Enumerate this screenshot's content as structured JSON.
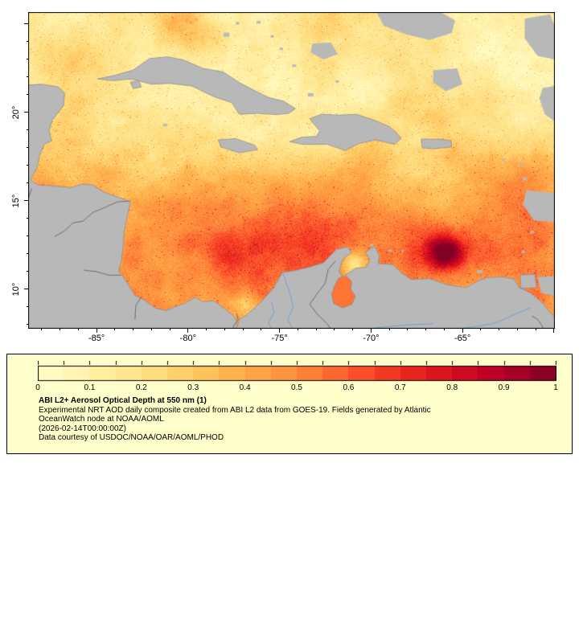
{
  "window": {
    "background": "#ffffff"
  },
  "map": {
    "frame_color": "#000000",
    "land_color": "#b8b8b8",
    "coast_color": "#8f8f8f",
    "border_color": "#6f6f6f",
    "river_color": "#7aa0cc",
    "lon_range": [
      -88.74,
      -59.95
    ],
    "lat_range": [
      7.77,
      25.68
    ],
    "lon_ticks": [
      {
        "value": -85,
        "label": "-85°"
      },
      {
        "value": -80,
        "label": "-80°"
      },
      {
        "value": -75,
        "label": "-75°"
      },
      {
        "value": -70,
        "label": "-70°"
      },
      {
        "value": -65,
        "label": "-65°"
      }
    ],
    "lat_ticks": [
      {
        "value": 20,
        "label": "20°"
      },
      {
        "value": 15,
        "label": "15°"
      },
      {
        "value": 10,
        "label": "10°"
      }
    ],
    "hotspots": [
      [
        -65.9,
        12.1,
        1.0,
        0.55
      ],
      [
        -66.5,
        12.8,
        2.0,
        0.2
      ],
      [
        -74.5,
        12.8,
        3.5,
        0.18
      ],
      [
        -77.9,
        11.6,
        2.0,
        0.16
      ],
      [
        -80.0,
        14.5,
        3.0,
        0.15
      ],
      [
        -71.0,
        14.0,
        3.0,
        0.12
      ],
      [
        -62.5,
        16.5,
        3.5,
        0.1
      ],
      [
        -80.6,
        25.2,
        1.5,
        0.32
      ],
      [
        -78.9,
        24.1,
        1.1,
        0.16
      ],
      [
        -86.4,
        22.8,
        1.3,
        0.1
      ],
      [
        -70.9,
        11.4,
        0.8,
        -0.3
      ],
      [
        -76.9,
        9.3,
        0.7,
        -0.2
      ]
    ],
    "land_polygons": [
      [
        [
          -88.74,
          21.55
        ],
        [
          -88.0,
          21.6
        ],
        [
          -87.1,
          21.45
        ],
        [
          -86.75,
          21.1
        ],
        [
          -86.8,
          20.4
        ],
        [
          -87.4,
          19.6
        ],
        [
          -87.6,
          19.0
        ],
        [
          -87.45,
          18.4
        ],
        [
          -87.85,
          18.2
        ],
        [
          -88.1,
          17.6
        ],
        [
          -88.25,
          16.9
        ],
        [
          -88.6,
          16.2
        ],
        [
          -88.2,
          15.9
        ],
        [
          -87.4,
          15.85
        ],
        [
          -86.4,
          15.75
        ],
        [
          -85.8,
          15.95
        ],
        [
          -85.2,
          15.9
        ],
        [
          -84.6,
          15.5
        ],
        [
          -83.8,
          15.2
        ],
        [
          -83.15,
          14.95
        ],
        [
          -83.35,
          14.0
        ],
        [
          -83.5,
          13.2
        ],
        [
          -83.55,
          12.4
        ],
        [
          -83.65,
          11.6
        ],
        [
          -83.8,
          11.0
        ],
        [
          -83.6,
          10.8
        ],
        [
          -82.9,
          9.65
        ],
        [
          -82.4,
          9.4
        ],
        [
          -81.8,
          8.95
        ],
        [
          -81.2,
          8.8
        ],
        [
          -80.6,
          9.05
        ],
        [
          -80.1,
          9.25
        ],
        [
          -79.6,
          9.55
        ],
        [
          -79.2,
          9.3
        ],
        [
          -78.6,
          9.35
        ],
        [
          -78.0,
          8.9
        ],
        [
          -77.5,
          8.5
        ],
        [
          -77.35,
          8.2
        ],
        [
          -77.35,
          7.77
        ],
        [
          -88.74,
          7.77
        ]
      ],
      [
        [
          -84.95,
          21.9
        ],
        [
          -84.0,
          22.1
        ],
        [
          -83.0,
          22.4
        ],
        [
          -82.1,
          23.05
        ],
        [
          -81.1,
          23.15
        ],
        [
          -80.2,
          22.95
        ],
        [
          -79.2,
          22.5
        ],
        [
          -78.1,
          22.3
        ],
        [
          -77.2,
          21.7
        ],
        [
          -76.3,
          21.2
        ],
        [
          -75.6,
          20.85
        ],
        [
          -74.8,
          20.65
        ],
        [
          -74.13,
          20.22
        ],
        [
          -74.5,
          19.95
        ],
        [
          -75.2,
          19.88
        ],
        [
          -76.2,
          19.95
        ],
        [
          -77.2,
          19.9
        ],
        [
          -77.6,
          20.55
        ],
        [
          -78.6,
          20.9
        ],
        [
          -79.8,
          21.5
        ],
        [
          -81.0,
          21.65
        ],
        [
          -82.0,
          21.6
        ],
        [
          -83.1,
          21.9
        ],
        [
          -84.1,
          21.8
        ]
      ],
      [
        [
          -83.15,
          21.7
        ],
        [
          -82.7,
          21.8
        ],
        [
          -82.55,
          21.45
        ],
        [
          -83.0,
          21.35
        ]
      ],
      [
        [
          -74.45,
          18.35
        ],
        [
          -73.8,
          18.6
        ],
        [
          -73.0,
          18.65
        ],
        [
          -72.8,
          18.95
        ],
        [
          -73.35,
          19.65
        ],
        [
          -72.7,
          19.9
        ],
        [
          -71.75,
          19.85
        ],
        [
          -70.8,
          19.9
        ],
        [
          -69.9,
          19.6
        ],
        [
          -69.0,
          19.2
        ],
        [
          -68.7,
          18.95
        ],
        [
          -68.35,
          18.55
        ],
        [
          -68.7,
          18.2
        ],
        [
          -69.75,
          18.45
        ],
        [
          -70.65,
          18.25
        ],
        [
          -71.4,
          17.85
        ],
        [
          -72.4,
          18.2
        ],
        [
          -73.75,
          18.2
        ]
      ],
      [
        [
          -78.35,
          18.45
        ],
        [
          -77.4,
          18.52
        ],
        [
          -76.35,
          18.15
        ],
        [
          -76.2,
          17.9
        ],
        [
          -77.2,
          17.72
        ],
        [
          -78.2,
          18.05
        ]
      ],
      [
        [
          -67.25,
          18.5
        ],
        [
          -66.1,
          18.48
        ],
        [
          -65.62,
          18.4
        ],
        [
          -65.6,
          18.05
        ],
        [
          -66.6,
          17.95
        ],
        [
          -67.2,
          18.0
        ]
      ],
      [
        [
          -77.35,
          7.77
        ],
        [
          -77.2,
          8.3
        ],
        [
          -76.8,
          8.55
        ],
        [
          -76.0,
          9.3
        ],
        [
          -75.3,
          10.1
        ],
        [
          -74.85,
          10.95
        ],
        [
          -74.2,
          11.05
        ],
        [
          -73.4,
          11.25
        ],
        [
          -72.6,
          11.5
        ],
        [
          -71.9,
          12.25
        ],
        [
          -71.3,
          12.4
        ],
        [
          -71.05,
          12.1
        ],
        [
          -71.55,
          11.7
        ],
        [
          -71.75,
          11.0
        ],
        [
          -71.55,
          10.7
        ],
        [
          -71.2,
          10.95
        ],
        [
          -70.8,
          11.2
        ],
        [
          -70.25,
          11.25
        ],
        [
          -70.05,
          11.65
        ],
        [
          -70.3,
          12.1
        ],
        [
          -69.8,
          12.45
        ],
        [
          -69.55,
          11.9
        ],
        [
          -69.6,
          11.45
        ],
        [
          -68.8,
          11.4
        ],
        [
          -68.3,
          10.9
        ],
        [
          -67.8,
          10.55
        ],
        [
          -66.8,
          10.6
        ],
        [
          -65.8,
          10.25
        ],
        [
          -64.8,
          10.1
        ],
        [
          -64.2,
          10.45
        ],
        [
          -63.7,
          10.65
        ],
        [
          -62.9,
          10.7
        ],
        [
          -62.2,
          10.6
        ],
        [
          -61.9,
          10.1
        ],
        [
          -61.3,
          9.8
        ],
        [
          -60.7,
          9.3
        ],
        [
          -60.2,
          8.7
        ],
        [
          -59.95,
          8.4
        ],
        [
          -59.95,
          7.77
        ]
      ],
      [
        [
          -61.85,
          10.8
        ],
        [
          -61.05,
          10.85
        ],
        [
          -60.95,
          10.1
        ],
        [
          -61.8,
          10.05
        ]
      ]
    ],
    "cloud_patches": [
      [
        [
          -69.7,
          25.68
        ],
        [
          -66.2,
          25.68
        ],
        [
          -65.4,
          25.2
        ],
        [
          -65.6,
          24.5
        ],
        [
          -66.8,
          24.1
        ],
        [
          -68.0,
          24.4
        ],
        [
          -69.3,
          24.9
        ]
      ],
      [
        [
          -61.6,
          25.3
        ],
        [
          -60.2,
          25.55
        ],
        [
          -59.95,
          24.8
        ],
        [
          -59.95,
          23.0
        ],
        [
          -60.9,
          23.2
        ],
        [
          -61.6,
          24.2
        ]
      ],
      [
        [
          -73.2,
          23.9
        ],
        [
          -72.2,
          23.95
        ],
        [
          -71.8,
          23.3
        ],
        [
          -72.6,
          23.0
        ],
        [
          -73.3,
          23.4
        ]
      ],
      [
        [
          -61.5,
          15.6
        ],
        [
          -60.0,
          15.45
        ],
        [
          -59.95,
          13.8
        ],
        [
          -61.1,
          13.9
        ],
        [
          -61.7,
          14.8
        ]
      ],
      [
        [
          -66.6,
          22.4
        ],
        [
          -65.3,
          22.5
        ],
        [
          -65.0,
          21.6
        ],
        [
          -65.9,
          21.2
        ],
        [
          -66.6,
          21.7
        ]
      ],
      [
        [
          -60.6,
          21.4
        ],
        [
          -59.95,
          21.5
        ],
        [
          -59.95,
          19.5
        ],
        [
          -60.5,
          19.9
        ],
        [
          -60.8,
          20.8
        ]
      ],
      [
        [
          -60.9,
          10.7
        ],
        [
          -59.95,
          10.75
        ],
        [
          -59.95,
          9.6
        ],
        [
          -60.7,
          9.8
        ]
      ]
    ],
    "island_specks": [
      [
        -77.9,
        24.4,
        7,
        5
      ],
      [
        -77.3,
        25.05,
        4,
        3
      ],
      [
        -76.15,
        25.1,
        5,
        3
      ],
      [
        -75.4,
        24.3,
        4,
        3
      ],
      [
        -74.9,
        23.6,
        4,
        3
      ],
      [
        -74.2,
        22.65,
        5,
        3
      ],
      [
        -73.3,
        21.0,
        7,
        4
      ],
      [
        -71.85,
        21.75,
        4,
        3
      ],
      [
        -81.25,
        19.3,
        5,
        3
      ],
      [
        -69.97,
        12.5,
        4,
        3
      ],
      [
        -68.95,
        12.2,
        4,
        3
      ],
      [
        -68.27,
        12.15,
        3,
        3
      ],
      [
        -64.05,
        11.0,
        7,
        4
      ],
      [
        -61.68,
        12.1,
        4,
        3
      ],
      [
        -61.2,
        13.25,
        4,
        3
      ],
      [
        -61.0,
        14.65,
        4,
        4
      ],
      [
        -61.35,
        15.42,
        4,
        4
      ],
      [
        -61.6,
        16.25,
        5,
        4
      ],
      [
        -61.8,
        17.07,
        4,
        3
      ],
      [
        -62.75,
        17.33,
        3,
        3
      ]
    ],
    "lake_maracaibo": [
      [
        -71.75,
        10.65
      ],
      [
        -71.35,
        10.75
      ],
      [
        -71.05,
        10.45
      ],
      [
        -71.1,
        10.0
      ],
      [
        -70.85,
        9.6
      ],
      [
        -71.05,
        9.15
      ],
      [
        -71.55,
        8.95
      ],
      [
        -72.05,
        9.2
      ],
      [
        -72.15,
        9.75
      ],
      [
        -71.95,
        10.3
      ]
    ],
    "borders": [
      [
        [
          -87.3,
          12.98
        ],
        [
          -86.75,
          13.3
        ],
        [
          -86.3,
          13.75
        ],
        [
          -85.75,
          13.85
        ],
        [
          -85.2,
          14.35
        ],
        [
          -84.5,
          14.65
        ],
        [
          -83.85,
          14.95
        ],
        [
          -83.15,
          14.99
        ]
      ],
      [
        [
          -85.7,
          11.08
        ],
        [
          -85.0,
          11.0
        ],
        [
          -84.35,
          10.8
        ],
        [
          -83.66,
          10.8
        ]
      ],
      [
        [
          -82.56,
          9.55
        ],
        [
          -82.85,
          9.1
        ],
        [
          -82.9,
          8.3
        ]
      ],
      [
        [
          -77.35,
          8.65
        ],
        [
          -77.25,
          8.3
        ],
        [
          -77.5,
          7.95
        ],
        [
          -77.55,
          7.77
        ]
      ],
      [
        [
          -71.95,
          11.6
        ],
        [
          -72.35,
          11.1
        ],
        [
          -72.5,
          10.35
        ],
        [
          -72.95,
          9.75
        ],
        [
          -73.35,
          9.15
        ],
        [
          -72.9,
          8.55
        ],
        [
          -72.4,
          8.05
        ],
        [
          -72.2,
          7.77
        ]
      ],
      [
        [
          -61.2,
          8.5
        ],
        [
          -60.9,
          8.3
        ],
        [
          -60.65,
          7.95
        ],
        [
          -60.6,
          7.77
        ]
      ],
      [
        [
          -88.55,
          15.7
        ],
        [
          -88.74,
          15.1
        ]
      ]
    ],
    "rivers": [
      [
        [
          -74.85,
          11.05
        ],
        [
          -74.65,
          10.4
        ],
        [
          -74.4,
          9.7
        ],
        [
          -74.25,
          9.0
        ],
        [
          -74.55,
          8.3
        ],
        [
          -74.3,
          7.77
        ]
      ],
      [
        [
          -75.45,
          9.3
        ],
        [
          -75.3,
          8.7
        ],
        [
          -75.6,
          8.1
        ],
        [
          -75.45,
          7.77
        ]
      ],
      [
        [
          -61.3,
          8.95
        ],
        [
          -62.2,
          8.55
        ],
        [
          -63.2,
          8.1
        ],
        [
          -64.2,
          7.9
        ],
        [
          -65.3,
          7.77
        ]
      ],
      [
        [
          -66.6,
          8.05
        ],
        [
          -67.8,
          8.0
        ],
        [
          -69.0,
          7.9
        ],
        [
          -70.2,
          7.77
        ]
      ]
    ]
  },
  "colorbar": {
    "segments": 20,
    "stops": [
      "#ffffcc",
      "#ffeda0",
      "#fed976",
      "#feb24c",
      "#fd8d3c",
      "#fc4e2a",
      "#e31a1c",
      "#bd0026",
      "#800026"
    ],
    "tick_labels": [
      "0",
      "0.1",
      "0.2",
      "0.3",
      "0.4",
      "0.5",
      "0.6",
      "0.7",
      "0.8",
      "0.9",
      "1"
    ],
    "tick_values": [
      0,
      0.1,
      0.2,
      0.3,
      0.4,
      0.5,
      0.6,
      0.7,
      0.8,
      0.9,
      1
    ]
  },
  "legend": {
    "background": "#ffffcc",
    "border_color": "#000000",
    "title": "ABI L2+ Aerosol Optical Depth at 550 nm (1)",
    "desc_line1": "Experimental NRT AOD daily composite created from ABI L2 data from GOES-19. Fields generated by Atlantic",
    "desc_line2": "OceanWatch node at NOAA/AOML",
    "timestamp_line": "(2026-02-14T00:00:00Z)",
    "courtesy_line": "Data courtesy of USDOC/NOAA/OAR/AOML/PHOD"
  },
  "chart_data": {
    "type": "heatmap",
    "title": "ABI L2+ Aerosol Optical Depth at 550 nm (1)",
    "value_label": "Aerosol Optical Depth at 550 nm",
    "value_range": [
      0,
      1
    ],
    "colorbar_tick_labels": [
      "0",
      "0.1",
      "0.2",
      "0.3",
      "0.4",
      "0.5",
      "0.6",
      "0.7",
      "0.8",
      "0.9",
      "1"
    ],
    "colormap_stops": [
      "#ffffcc",
      "#ffeda0",
      "#fed976",
      "#feb24c",
      "#fd8d3c",
      "#fc4e2a",
      "#e31a1c",
      "#bd0026",
      "#800026"
    ],
    "x_tick_labels": [
      "-85°",
      "-80°",
      "-75°",
      "-70°",
      "-65°"
    ],
    "y_tick_labels": [
      "20°",
      "15°",
      "10°"
    ],
    "lon_range": [
      -88.74,
      -59.95
    ],
    "lat_range": [
      7.77,
      25.68
    ]
  }
}
